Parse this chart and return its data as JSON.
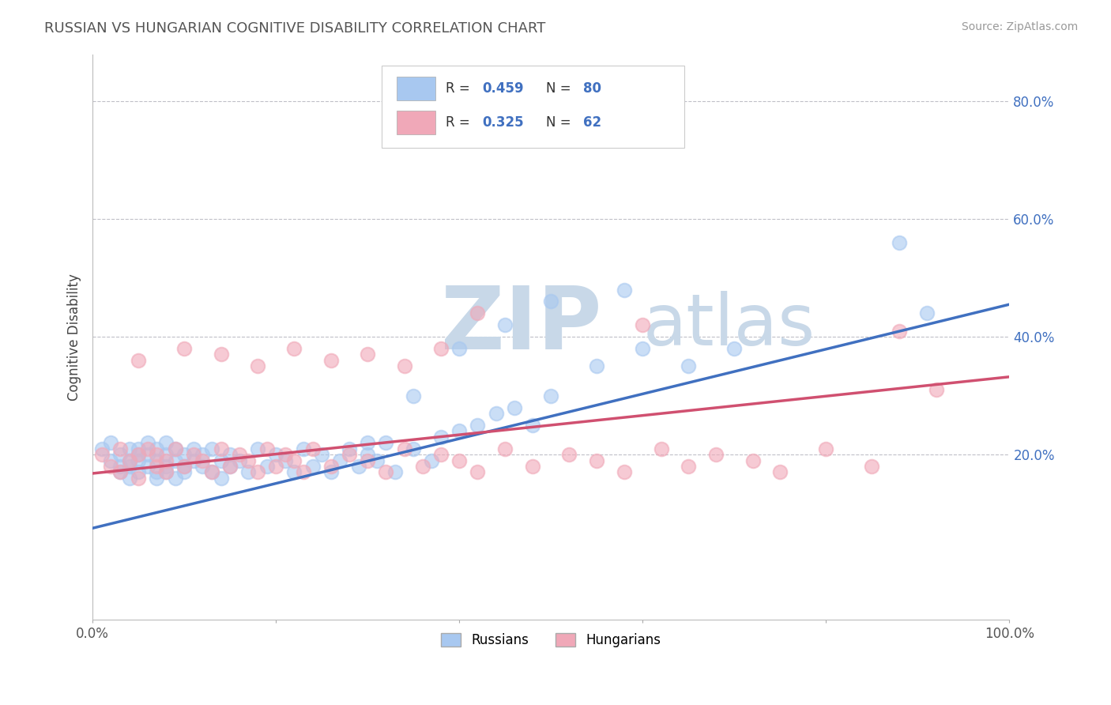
{
  "title": "RUSSIAN VS HUNGARIAN COGNITIVE DISABILITY CORRELATION CHART",
  "source": "Source: ZipAtlas.com",
  "ylabel": "Cognitive Disability",
  "russian_R": 0.459,
  "russian_N": 80,
  "hungarian_R": 0.325,
  "hungarian_N": 62,
  "xlim": [
    0.0,
    1.0
  ],
  "ylim": [
    -0.08,
    0.88
  ],
  "yticks": [
    0.2,
    0.4,
    0.6,
    0.8
  ],
  "ytick_labels": [
    "20.0%",
    "40.0%",
    "60.0%",
    "80.0%"
  ],
  "russian_color": "#A8C8F0",
  "hungarian_color": "#F0A8B8",
  "russian_line_color": "#4070C0",
  "hungarian_line_color": "#D05070",
  "background_color": "#FFFFFF",
  "watermark_color": "#C8D8E8",
  "grid_color": "#C0C0C8",
  "legend_label_russian": "Russians",
  "legend_label_hungarian": "Hungarians",
  "russian_x": [
    0.01,
    0.02,
    0.02,
    0.03,
    0.03,
    0.03,
    0.04,
    0.04,
    0.04,
    0.04,
    0.05,
    0.05,
    0.05,
    0.05,
    0.06,
    0.06,
    0.06,
    0.07,
    0.07,
    0.07,
    0.07,
    0.08,
    0.08,
    0.08,
    0.08,
    0.09,
    0.09,
    0.09,
    0.1,
    0.1,
    0.1,
    0.11,
    0.11,
    0.12,
    0.12,
    0.13,
    0.13,
    0.14,
    0.14,
    0.15,
    0.15,
    0.16,
    0.17,
    0.18,
    0.19,
    0.2,
    0.21,
    0.22,
    0.23,
    0.24,
    0.25,
    0.26,
    0.27,
    0.28,
    0.29,
    0.3,
    0.31,
    0.32,
    0.33,
    0.35,
    0.37,
    0.38,
    0.4,
    0.42,
    0.44,
    0.46,
    0.48,
    0.5,
    0.55,
    0.6,
    0.3,
    0.35,
    0.4,
    0.45,
    0.5,
    0.58,
    0.65,
    0.7,
    0.88,
    0.91
  ],
  "russian_y": [
    0.21,
    0.19,
    0.22,
    0.17,
    0.2,
    0.18,
    0.19,
    0.16,
    0.21,
    0.18,
    0.2,
    0.17,
    0.19,
    0.21,
    0.18,
    0.2,
    0.22,
    0.17,
    0.19,
    0.21,
    0.16,
    0.18,
    0.2,
    0.17,
    0.22,
    0.19,
    0.16,
    0.21,
    0.18,
    0.2,
    0.17,
    0.19,
    0.21,
    0.18,
    0.2,
    0.17,
    0.21,
    0.19,
    0.16,
    0.2,
    0.18,
    0.19,
    0.17,
    0.21,
    0.18,
    0.2,
    0.19,
    0.17,
    0.21,
    0.18,
    0.2,
    0.17,
    0.19,
    0.21,
    0.18,
    0.2,
    0.19,
    0.22,
    0.17,
    0.21,
    0.19,
    0.23,
    0.24,
    0.25,
    0.27,
    0.28,
    0.25,
    0.3,
    0.35,
    0.38,
    0.22,
    0.3,
    0.38,
    0.42,
    0.46,
    0.48,
    0.35,
    0.38,
    0.56,
    0.44
  ],
  "hungarian_x": [
    0.01,
    0.02,
    0.03,
    0.03,
    0.04,
    0.05,
    0.05,
    0.06,
    0.07,
    0.07,
    0.08,
    0.08,
    0.09,
    0.1,
    0.11,
    0.12,
    0.13,
    0.14,
    0.15,
    0.16,
    0.17,
    0.18,
    0.19,
    0.2,
    0.21,
    0.22,
    0.23,
    0.24,
    0.26,
    0.28,
    0.3,
    0.32,
    0.34,
    0.36,
    0.38,
    0.4,
    0.42,
    0.45,
    0.48,
    0.52,
    0.55,
    0.58,
    0.62,
    0.65,
    0.68,
    0.72,
    0.75,
    0.8,
    0.85,
    0.88,
    0.05,
    0.1,
    0.14,
    0.18,
    0.22,
    0.26,
    0.3,
    0.34,
    0.38,
    0.42,
    0.6,
    0.92
  ],
  "hungarian_y": [
    0.2,
    0.18,
    0.21,
    0.17,
    0.19,
    0.2,
    0.16,
    0.21,
    0.18,
    0.2,
    0.19,
    0.17,
    0.21,
    0.18,
    0.2,
    0.19,
    0.17,
    0.21,
    0.18,
    0.2,
    0.19,
    0.17,
    0.21,
    0.18,
    0.2,
    0.19,
    0.17,
    0.21,
    0.18,
    0.2,
    0.19,
    0.17,
    0.21,
    0.18,
    0.2,
    0.19,
    0.17,
    0.21,
    0.18,
    0.2,
    0.19,
    0.17,
    0.21,
    0.18,
    0.2,
    0.19,
    0.17,
    0.21,
    0.18,
    0.41,
    0.36,
    0.38,
    0.37,
    0.35,
    0.38,
    0.36,
    0.37,
    0.35,
    0.38,
    0.44,
    0.42,
    0.31
  ],
  "russian_trend_x": [
    0.0,
    1.0
  ],
  "russian_trend_y": [
    0.075,
    0.455
  ],
  "hungarian_trend_x": [
    0.0,
    1.0
  ],
  "hungarian_trend_y": [
    0.168,
    0.332
  ]
}
